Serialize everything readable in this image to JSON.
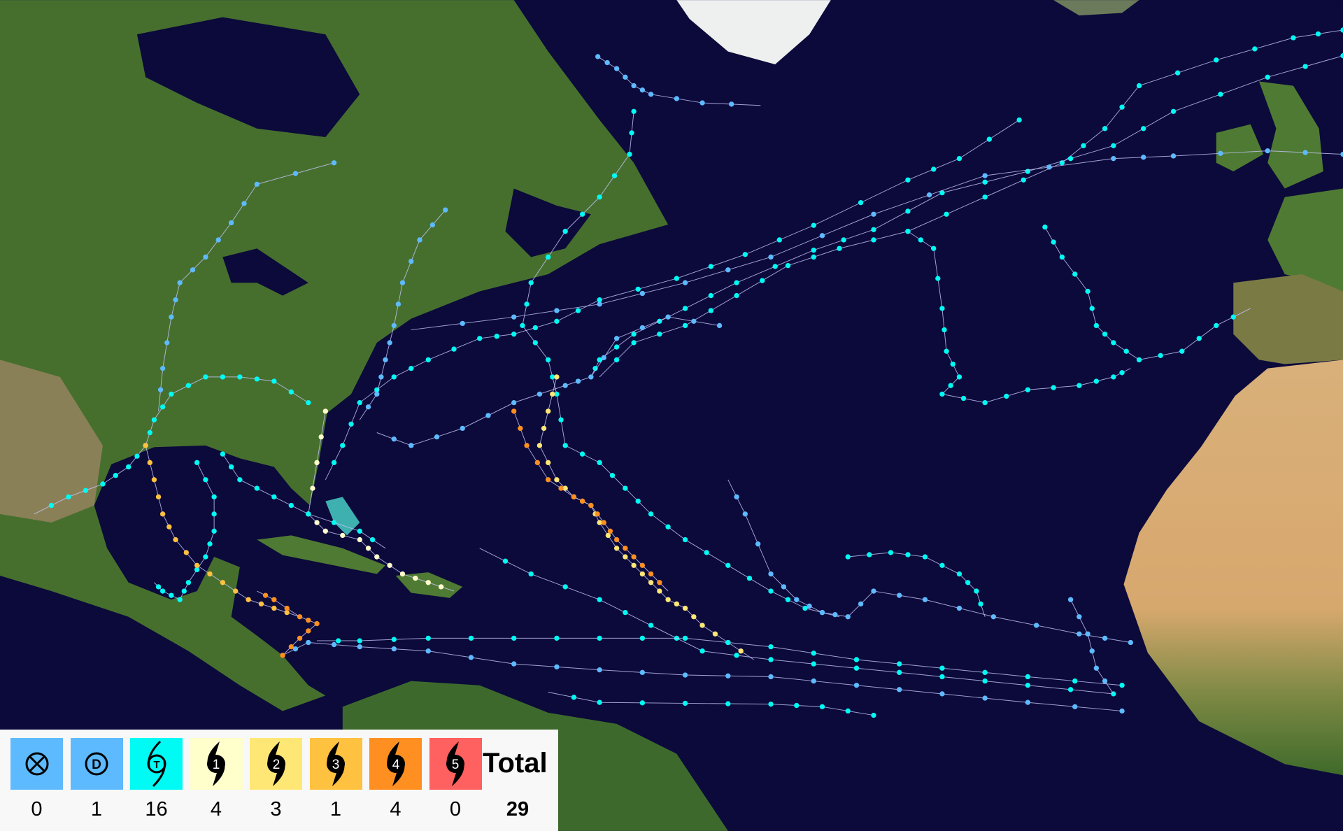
{
  "legend": {
    "categories": [
      {
        "label": "Extratropical / post-tropical",
        "symbol": "⊗",
        "icon": "post-tropical-icon",
        "color": "#5ebaff",
        "count": "0"
      },
      {
        "label": "Tropical depression",
        "symbol": "D",
        "icon": "depression-icon",
        "color": "#5ebaff",
        "count": "1"
      },
      {
        "label": "Tropical storm",
        "symbol": "T",
        "icon": "tropical-storm-icon",
        "color": "#00faf4",
        "count": "16"
      },
      {
        "label": "Category 1",
        "symbol": "1",
        "icon": "hurricane-icon",
        "color": "#ffffcc",
        "count": "4"
      },
      {
        "label": "Category 2",
        "symbol": "2",
        "icon": "hurricane-icon",
        "color": "#ffe775",
        "count": "3"
      },
      {
        "label": "Category 3",
        "symbol": "3",
        "icon": "hurricane-icon",
        "color": "#ffc140",
        "count": "1"
      },
      {
        "label": "Category 4",
        "symbol": "4",
        "icon": "hurricane-icon",
        "color": "#ff8f20",
        "count": "4"
      },
      {
        "label": "Category 5",
        "symbol": "5",
        "icon": "hurricane-icon",
        "color": "#ff6060",
        "count": "0"
      }
    ],
    "total_label": "Total",
    "total_value": "29"
  },
  "colors": {
    "ocean": "#0b0a3a",
    "land": "#3f6a2a",
    "desert": "#d9b07a",
    "ice": "#f0f0f0",
    "track_line": "#c8c8ff"
  }
}
